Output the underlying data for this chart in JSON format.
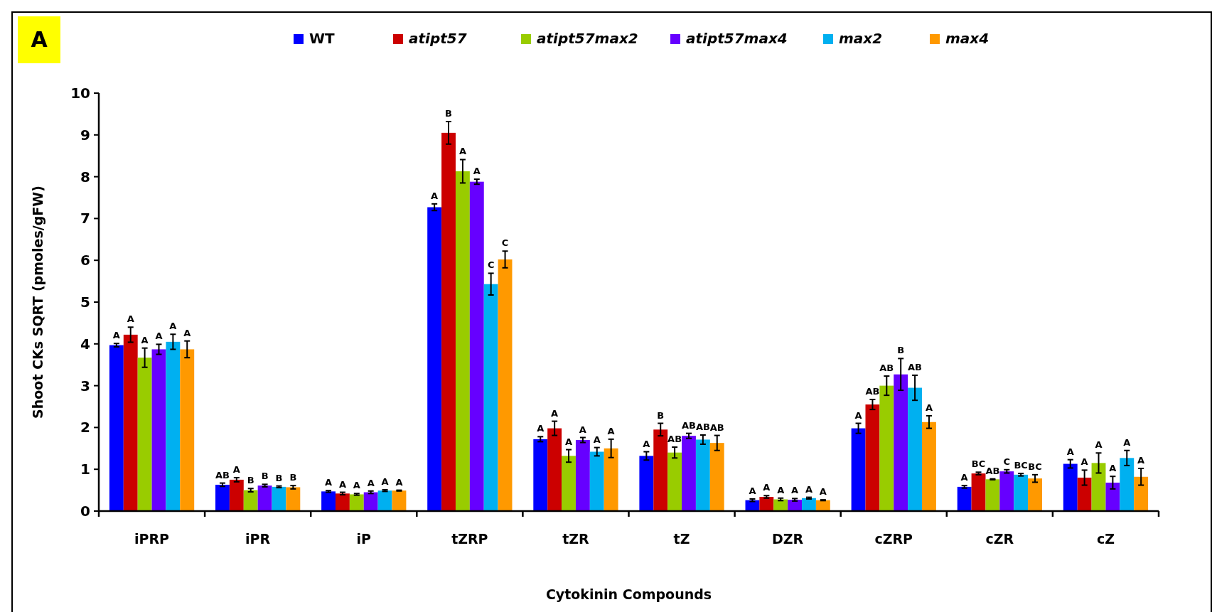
{
  "chart_data": {
    "type": "bar",
    "xlabel": "Cytokinin Compounds",
    "ylabel": "Shoot CKs SQRT (pmoles/gFW)",
    "annotations": [
      "A"
    ],
    "categories": [
      "iPRP",
      "iPR",
      "iP",
      "tZRP",
      "tZR",
      "tZ",
      "DZR",
      "cZRP",
      "cZR",
      "cZ"
    ],
    "ylim": [
      0,
      10
    ],
    "yticks": [
      0,
      1,
      2,
      3,
      4,
      5,
      6,
      7,
      8,
      9,
      10
    ],
    "legend": "top",
    "grid": false,
    "series": [
      {
        "name": "WT",
        "color": "#0000ff",
        "values": [
          3.97,
          0.63,
          0.47,
          7.27,
          1.72,
          1.32,
          0.26,
          1.98,
          0.58,
          1.13
        ],
        "errors": [
          0.04,
          0.04,
          0.02,
          0.08,
          0.06,
          0.1,
          0.03,
          0.12,
          0.03,
          0.1
        ],
        "value_labels": [
          "A",
          "AB",
          "A",
          "A",
          "A",
          "A",
          "A",
          "A",
          "A",
          "A"
        ]
      },
      {
        "name": "atipt57",
        "color": "#cc0000",
        "values": [
          4.22,
          0.75,
          0.42,
          9.05,
          1.98,
          1.95,
          0.34,
          2.55,
          0.9,
          0.8
        ],
        "errors": [
          0.18,
          0.05,
          0.03,
          0.27,
          0.17,
          0.15,
          0.03,
          0.12,
          0.03,
          0.18
        ],
        "value_labels": [
          "A",
          "A",
          "A",
          "B",
          "A",
          "B",
          "A",
          "AB",
          "BC",
          "A"
        ]
      },
      {
        "name": "atipt57max2",
        "color": "#99cc00",
        "values": [
          3.67,
          0.5,
          0.4,
          8.13,
          1.32,
          1.4,
          0.28,
          3.0,
          0.76,
          1.15
        ],
        "errors": [
          0.23,
          0.04,
          0.02,
          0.28,
          0.15,
          0.13,
          0.03,
          0.23,
          0.01,
          0.24
        ],
        "value_labels": [
          "A",
          "B",
          "A",
          "A",
          "A",
          "AB",
          "A",
          "AB",
          "AB",
          "A"
        ]
      },
      {
        "name": "atipt57max4",
        "color": "#6600ff",
        "values": [
          3.87,
          0.61,
          0.45,
          7.88,
          1.7,
          1.8,
          0.27,
          3.27,
          0.95,
          0.68
        ],
        "errors": [
          0.12,
          0.03,
          0.03,
          0.06,
          0.06,
          0.06,
          0.03,
          0.38,
          0.04,
          0.15
        ],
        "value_labels": [
          "A",
          "B",
          "A",
          "A",
          "A",
          "AB",
          "A",
          "B",
          "C",
          "A"
        ]
      },
      {
        "name": "max2",
        "color": "#00b0f0",
        "values": [
          4.05,
          0.58,
          0.49,
          5.43,
          1.42,
          1.71,
          0.31,
          2.95,
          0.87,
          1.27
        ],
        "errors": [
          0.18,
          0.02,
          0.02,
          0.26,
          0.1,
          0.11,
          0.02,
          0.3,
          0.03,
          0.18
        ],
        "value_labels": [
          "A",
          "B",
          "A",
          "C",
          "A",
          "AB",
          "A",
          "AB",
          "BC",
          "A"
        ]
      },
      {
        "name": "max4",
        "color": "#ff9900",
        "values": [
          3.87,
          0.57,
          0.49,
          6.02,
          1.5,
          1.63,
          0.26,
          2.13,
          0.78,
          0.82
        ],
        "errors": [
          0.2,
          0.04,
          0.01,
          0.2,
          0.22,
          0.18,
          0.01,
          0.15,
          0.09,
          0.2
        ],
        "value_labels": [
          "A",
          "B",
          "A",
          "C",
          "A",
          "AB",
          "A",
          "A",
          "BC",
          "A"
        ]
      }
    ]
  }
}
